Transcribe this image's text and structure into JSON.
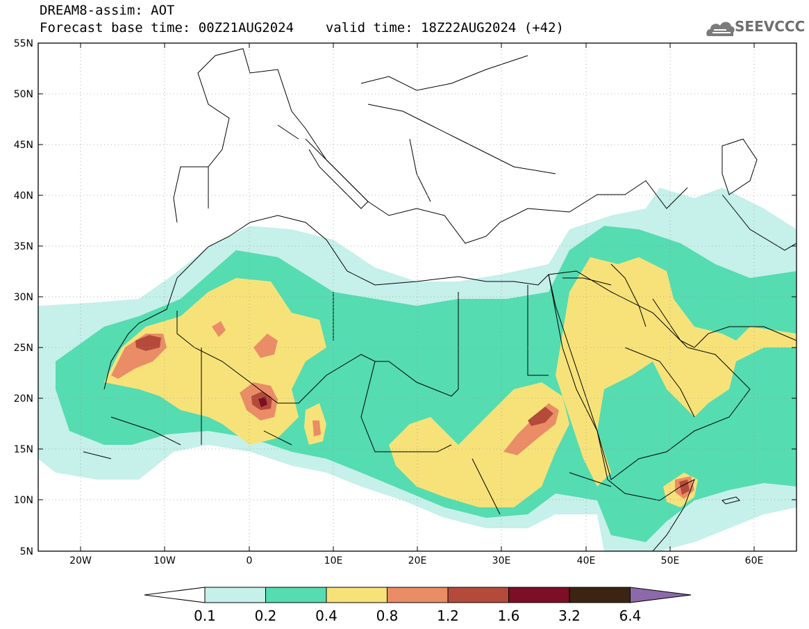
{
  "title_line1": "DREAM8-assim: AOT",
  "title_line2_left": "Forecast base time: 00Z21AUG2024",
  "title_line2_right": "valid time: 18Z22AUG2024 (+42)",
  "logo_text": "SEEVCCC",
  "map": {
    "lon_range": [
      -25,
      65
    ],
    "lat_range": [
      5,
      55
    ],
    "lon_ticks": [
      "20W",
      "10W",
      "0",
      "10E",
      "20E",
      "30E",
      "40E",
      "50E",
      "60E"
    ],
    "lat_ticks": [
      "55N",
      "50N",
      "45N",
      "40N",
      "35N",
      "30N",
      "25N",
      "20N",
      "15N",
      "10N",
      "5N"
    ]
  },
  "colorbar": {
    "labels": [
      "0.1",
      "0.2",
      "0.4",
      "0.8",
      "1.2",
      "1.6",
      "3.2",
      "6.4"
    ],
    "colors": [
      "#ffffff",
      "#c6f0ea",
      "#55dcb0",
      "#f7e27a",
      "#ea8d67",
      "#b44b3a",
      "#7c0f25",
      "#3c2412",
      "#8c69a8"
    ]
  }
}
